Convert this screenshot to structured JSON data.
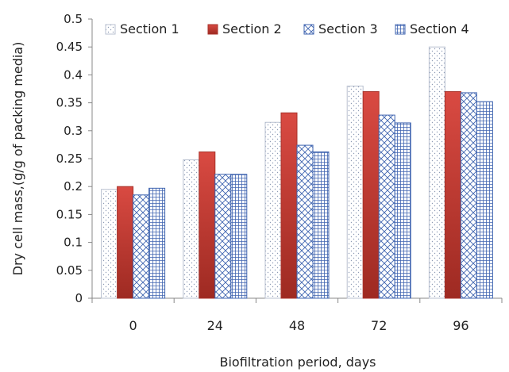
{
  "chart_data": {
    "type": "bar",
    "categories": [
      "0",
      "24",
      "48",
      "72",
      "96"
    ],
    "series": [
      {
        "name": "Section 1",
        "values": [
          0.195,
          0.248,
          0.315,
          0.38,
          0.45
        ]
      },
      {
        "name": "Section 2",
        "values": [
          0.2,
          0.262,
          0.332,
          0.37,
          0.37
        ]
      },
      {
        "name": "Section 3",
        "values": [
          0.185,
          0.222,
          0.274,
          0.328,
          0.368
        ]
      },
      {
        "name": "Section 4",
        "values": [
          0.197,
          0.222,
          0.262,
          0.314,
          0.352
        ]
      }
    ],
    "title": "",
    "xlabel": "Biofiltration period, days",
    "ylabel": "Dry cell mass,(g/g of packing media)",
    "ylim": [
      0,
      0.5
    ],
    "yticks": [
      "0",
      "0.05",
      "0.1",
      "0.15",
      "0.2",
      "0.25",
      "0.3",
      "0.35",
      "0.4",
      "0.45",
      "0.5"
    ],
    "grid": false,
    "legend_position": "top",
    "series_styles": [
      {
        "pattern": "dots",
        "color": "#9aa8c2"
      },
      {
        "pattern": "gradient-red",
        "color": "#c0392b"
      },
      {
        "pattern": "diagonal-cross",
        "color": "#4a6fb5"
      },
      {
        "pattern": "grid",
        "color": "#4a6fb5"
      }
    ]
  }
}
